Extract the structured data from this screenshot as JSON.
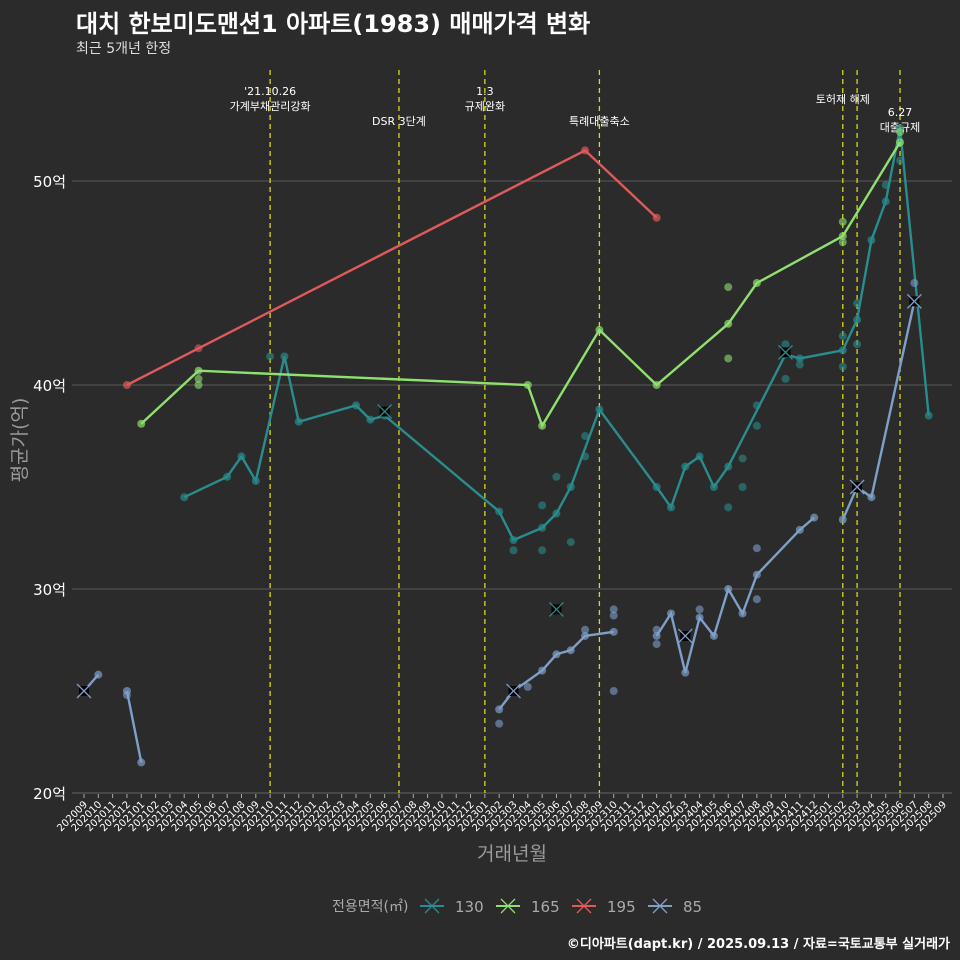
{
  "chart_data": {
    "type": "line",
    "title": "대치 한보미도맨션1 아파트(1983) 매매가격 변화",
    "subtitle": "최근 5개년 한정",
    "xlabel": "거래년월",
    "ylabel": "평균가(억)",
    "ylim": [
      20,
      53.5
    ],
    "yticks": [
      20,
      30,
      40,
      50
    ],
    "ytick_labels": [
      "20억",
      "30억",
      "40억",
      "50억"
    ],
    "grid": true,
    "legend_title": "전용면적(㎡)",
    "legend_position": "bottom",
    "x": [
      "202009",
      "202010",
      "202011",
      "202012",
      "202101",
      "202102",
      "202103",
      "202104",
      "202105",
      "202106",
      "202107",
      "202108",
      "202109",
      "202110",
      "202111",
      "202112",
      "202201",
      "202202",
      "202203",
      "202204",
      "202205",
      "202206",
      "202207",
      "202208",
      "202209",
      "202210",
      "202211",
      "202212",
      "202301",
      "202302",
      "202303",
      "202304",
      "202305",
      "202306",
      "202307",
      "202308",
      "202309",
      "202310",
      "202311",
      "202312",
      "202401",
      "202402",
      "202403",
      "202404",
      "202405",
      "202406",
      "202407",
      "202408",
      "202409",
      "202410",
      "202411",
      "202412",
      "202501",
      "202502",
      "202503",
      "202504",
      "202505",
      "202506",
      "202507",
      "202508",
      "202509"
    ],
    "annotations": [
      {
        "month": "202110",
        "lines": [
          "'21.10.26",
          "가계부채관리강화"
        ]
      },
      {
        "month": "202207",
        "lines": [
          "DSR 3단계"
        ]
      },
      {
        "month": "202301",
        "lines": [
          "1.3",
          "규제완화"
        ]
      },
      {
        "month": "202309",
        "lines": [
          "특례대출축소"
        ]
      },
      {
        "month": "202502",
        "lines": [
          "토허제 해제"
        ]
      },
      {
        "month": "202503",
        "lines": []
      },
      {
        "month": "202506",
        "lines": [
          "6.27",
          "대출규제"
        ]
      }
    ],
    "series": [
      {
        "name": "130",
        "color": "#2a8c8c",
        "segments": [
          [
            [
              "202104",
              34.5
            ],
            [
              "202107",
              35.5
            ],
            [
              "202108",
              36.5
            ],
            [
              "202109",
              35.3
            ],
            [
              "202111",
              41.4
            ],
            [
              "202112",
              38.2
            ],
            [
              "202204",
              39.0
            ],
            [
              "202205",
              38.3
            ],
            [
              "202206",
              38.5
            ],
            [
              "202302",
              33.8
            ],
            [
              "202303",
              32.4
            ],
            [
              "202305",
              33.0
            ],
            [
              "202306",
              33.7
            ],
            [
              "202307",
              35.0
            ],
            [
              "202309",
              38.8
            ],
            [
              "202401",
              35.0
            ],
            [
              "202402",
              34.0
            ],
            [
              "202403",
              36.0
            ],
            [
              "202404",
              36.5
            ],
            [
              "202405",
              35.0
            ],
            [
              "202406",
              36.0
            ],
            [
              "202410",
              41.5
            ],
            [
              "202411",
              41.3
            ],
            [
              "202502",
              41.7
            ],
            [
              "202503",
              43.2
            ],
            [
              "202504",
              47.1
            ],
            [
              "202505",
              49.0
            ],
            [
              "202506",
              52.6
            ],
            [
              "202508",
              38.5
            ]
          ]
        ],
        "points": [
          [
            "202110",
            41.4
          ],
          [
            "202306",
            35.5
          ],
          [
            "202307",
            32.3
          ],
          [
            "202305",
            34.1
          ],
          [
            "202303",
            31.9
          ],
          [
            "202305",
            31.9
          ],
          [
            "202308",
            37.5
          ],
          [
            "202308",
            36.5
          ],
          [
            "202406",
            34.0
          ],
          [
            "202407",
            35.0
          ],
          [
            "202407",
            36.4
          ],
          [
            "202408",
            38.0
          ],
          [
            "202408",
            39.0
          ],
          [
            "202410",
            42.0
          ],
          [
            "202410",
            40.3
          ],
          [
            "202411",
            41.0
          ],
          [
            "202502",
            40.9
          ],
          [
            "202502",
            42.4
          ],
          [
            "202503",
            42.0
          ],
          [
            "202503",
            44.0
          ],
          [
            "202505",
            49.8
          ],
          [
            "202506",
            51.0
          ]
        ],
        "markers_x": [
          [
            "202206",
            38.7
          ],
          [
            "202306",
            29.0
          ],
          [
            "202410",
            41.6
          ]
        ]
      },
      {
        "name": "165",
        "color": "#90e070",
        "segments": [
          [
            [
              "202101",
              38.1
            ],
            [
              "202105",
              40.7
            ],
            [
              "202304",
              40.0
            ],
            [
              "202305",
              38.0
            ],
            [
              "202309",
              42.7
            ],
            [
              "202401",
              40.0
            ],
            [
              "202406",
              43.0
            ],
            [
              "202408",
              45.0
            ],
            [
              "202502",
              47.3
            ],
            [
              "202506",
              51.9
            ]
          ]
        ],
        "points": [
          [
            "202105",
            40.3
          ],
          [
            "202105",
            40.0
          ],
          [
            "202406",
            44.8
          ],
          [
            "202406",
            41.3
          ],
          [
            "202502",
            48.0
          ],
          [
            "202502",
            47.0
          ],
          [
            "202506",
            52.4
          ]
        ],
        "markers_x": []
      },
      {
        "name": "195",
        "color": "#e05a5a",
        "segments": [
          [
            [
              "202012",
              40.0
            ],
            [
              "202308",
              51.5
            ],
            [
              "202401",
              48.2
            ]
          ]
        ],
        "points": [
          [
            "202105",
            41.8
          ]
        ],
        "markers_x": []
      },
      {
        "name": "85",
        "color": "#7f9fc8",
        "segments": [
          [
            [
              "202009",
              25.0
            ],
            [
              "202010",
              25.8
            ]
          ],
          [
            [
              "202012",
              25.0
            ],
            [
              "202101",
              21.5
            ]
          ],
          [
            [
              "202302",
              24.1
            ],
            [
              "202303",
              25.0
            ],
            [
              "202305",
              26.0
            ],
            [
              "202306",
              26.8
            ],
            [
              "202307",
              27.0
            ],
            [
              "202308",
              27.7
            ],
            [
              "202310",
              27.9
            ]
          ],
          [
            [
              "202401",
              27.7
            ],
            [
              "202402",
              28.8
            ],
            [
              "202403",
              25.9
            ],
            [
              "202404",
              28.6
            ],
            [
              "202405",
              27.7
            ],
            [
              "202406",
              30.0
            ],
            [
              "202407",
              28.8
            ],
            [
              "202408",
              30.7
            ],
            [
              "202411",
              32.9
            ],
            [
              "202412",
              33.5
            ]
          ],
          [
            [
              "202502",
              33.4
            ],
            [
              "202503",
              35.0
            ],
            [
              "202504",
              34.5
            ],
            [
              "202507",
              44.1
            ]
          ]
        ],
        "points": [
          [
            "202012",
            24.8
          ],
          [
            "202302",
            23.4
          ],
          [
            "202304",
            25.2
          ],
          [
            "202308",
            28.0
          ],
          [
            "202310",
            29.0
          ],
          [
            "202310",
            28.7
          ],
          [
            "202310",
            25.0
          ],
          [
            "202401",
            28.0
          ],
          [
            "202401",
            27.3
          ],
          [
            "202404",
            29.0
          ],
          [
            "202408",
            32.0
          ],
          [
            "202408",
            29.5
          ],
          [
            "202507",
            45.0
          ]
        ],
        "markers_x": [
          [
            "202009",
            25.0
          ],
          [
            "202303",
            25.0
          ],
          [
            "202403",
            27.7
          ],
          [
            "202503",
            35.0
          ],
          [
            "202507",
            44.1
          ]
        ]
      }
    ]
  },
  "footer": "©디아파트(dapt.kr) / 2025.09.13 / 자료=국토교통부 실거래가"
}
